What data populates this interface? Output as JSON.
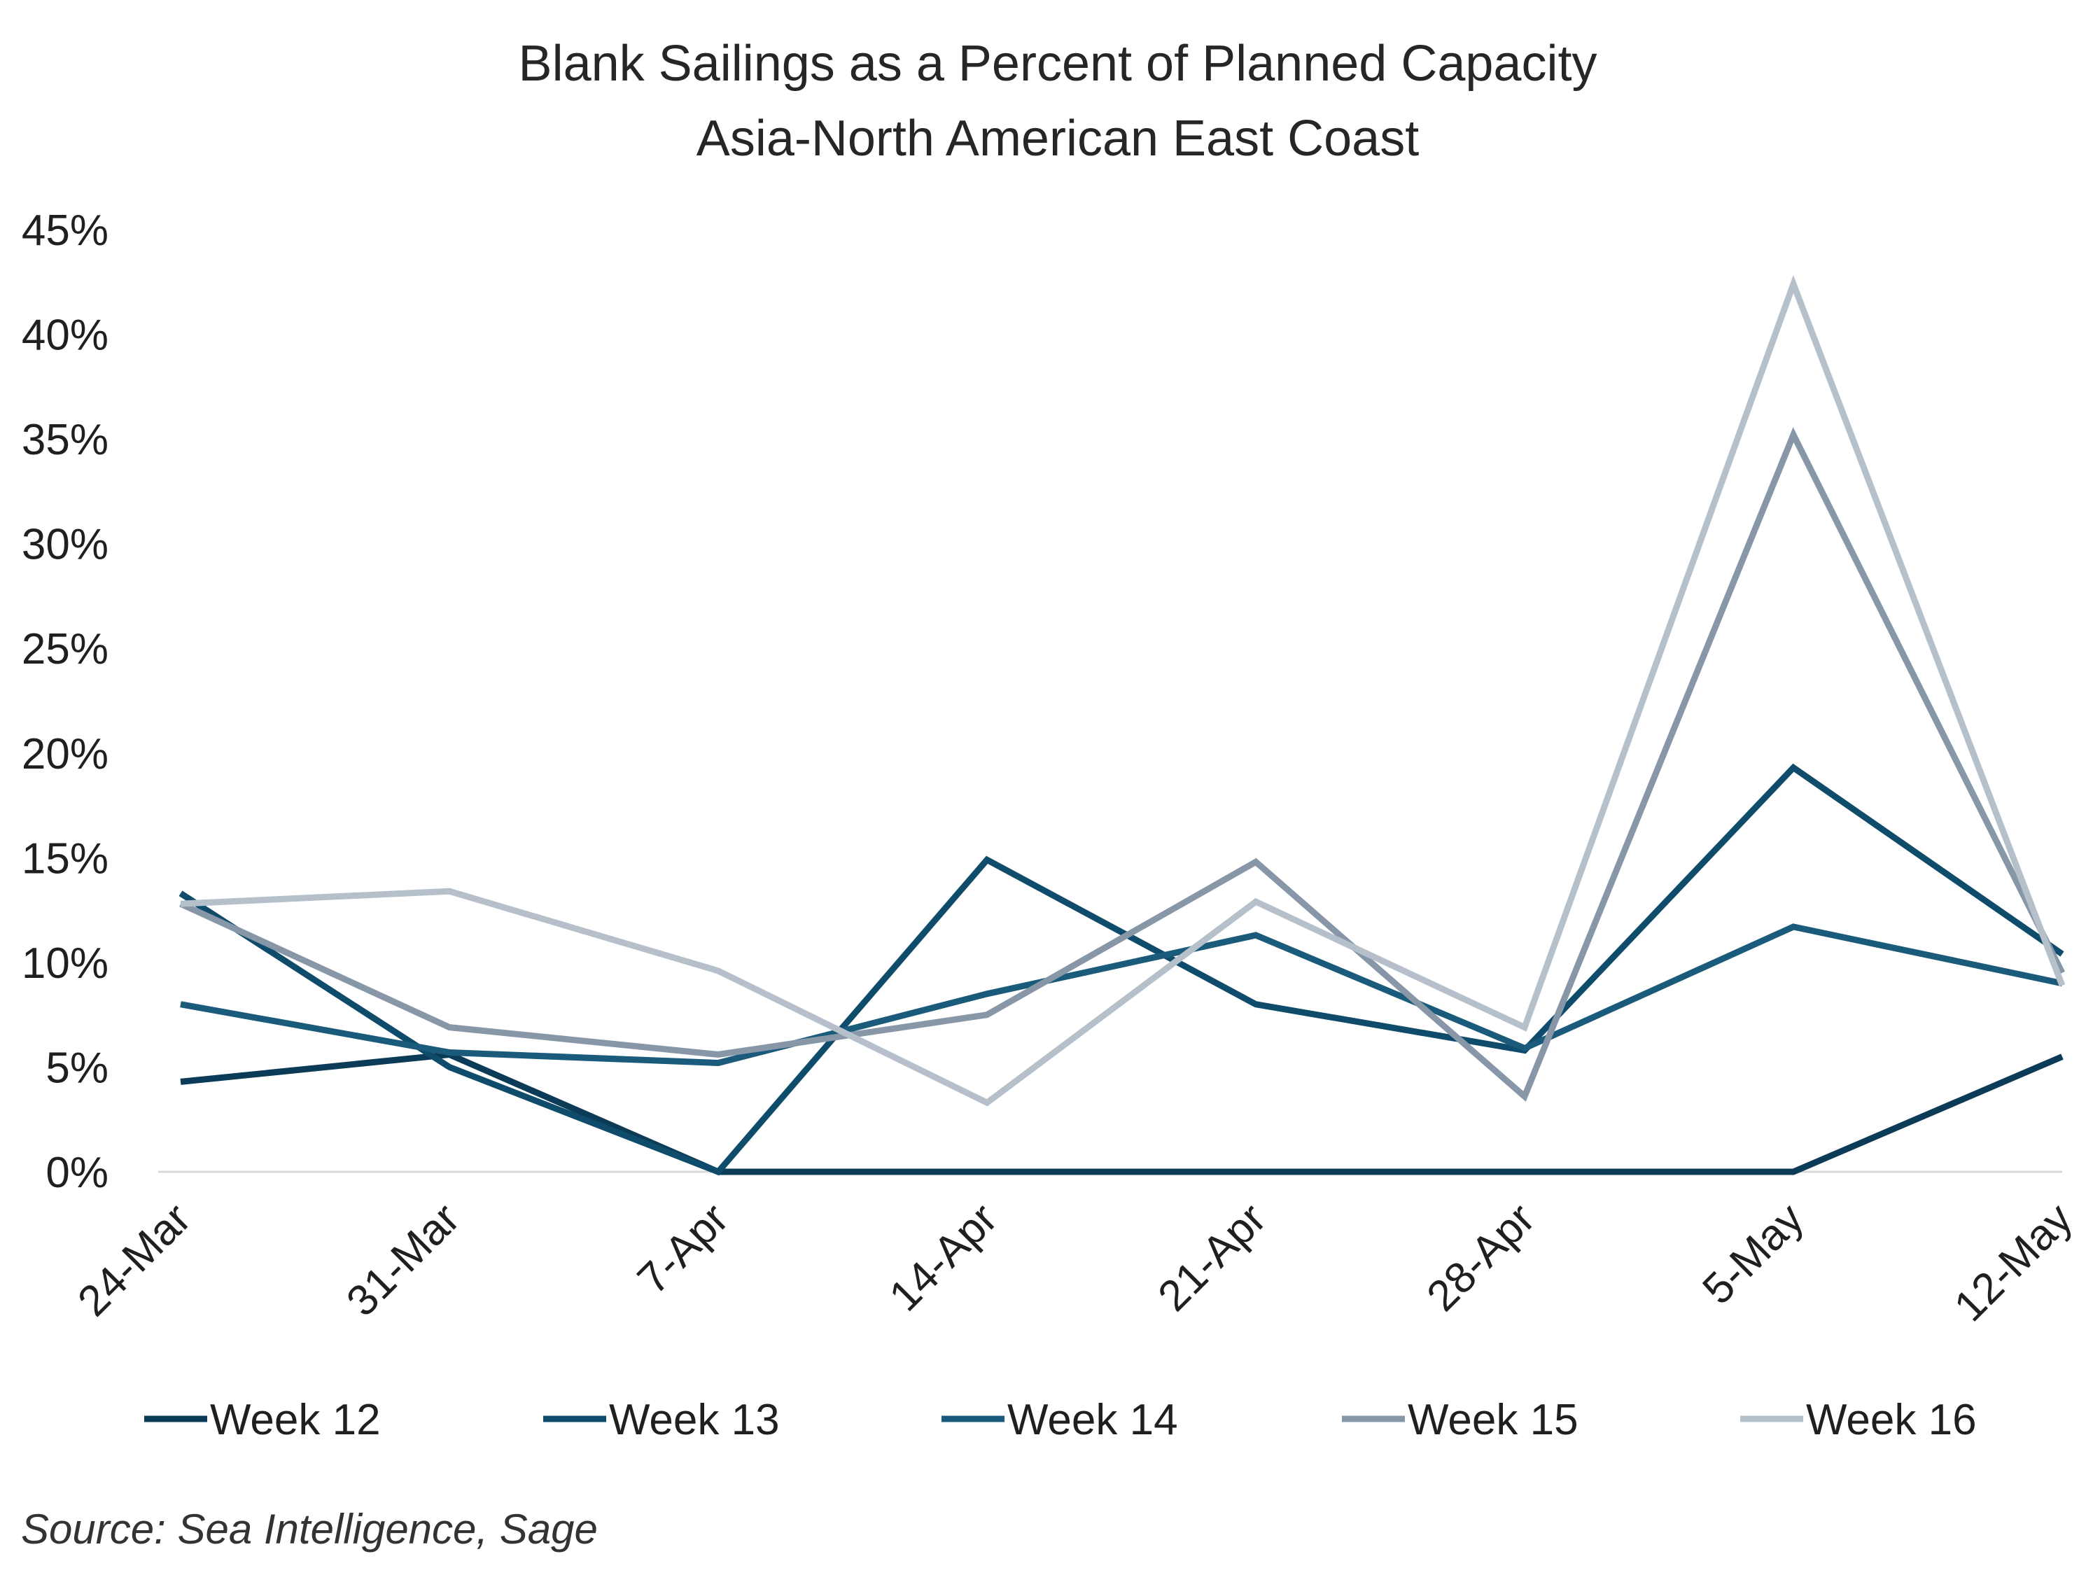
{
  "chart_data": {
    "type": "line",
    "title": "Blank Sailings as a Percent of Planned Capacity",
    "subtitle": "Asia-North American East Coast",
    "xlabel": "",
    "ylabel": "",
    "categories": [
      "24-Mar",
      "31-Mar",
      "7-Apr",
      "14-Apr",
      "21-Apr",
      "28-Apr",
      "5-May",
      "12-May"
    ],
    "y_ticks": [
      "0%",
      "5%",
      "10%",
      "15%",
      "20%",
      "25%",
      "30%",
      "35%",
      "40%",
      "45%"
    ],
    "ylim": [
      0,
      45
    ],
    "grid": false,
    "legend_position": "bottom",
    "series": [
      {
        "name": "Week 12",
        "color": "#0b3b57",
        "values": [
          4.3,
          5.6,
          0,
          0,
          0,
          0,
          0,
          5.5
        ]
      },
      {
        "name": "Week 13",
        "color": "#0f4c6b",
        "values": [
          13.3,
          5.0,
          0,
          14.9,
          8.0,
          5.8,
          19.3,
          10.4
        ]
      },
      {
        "name": "Week 14",
        "color": "#1a5a7a",
        "values": [
          8.0,
          5.7,
          5.2,
          8.5,
          11.3,
          5.9,
          11.7,
          9.0
        ]
      },
      {
        "name": "Week 15",
        "color": "#8797a8",
        "values": [
          12.8,
          6.9,
          5.6,
          7.5,
          14.8,
          3.6,
          35.2,
          9.5
        ]
      },
      {
        "name": "Week 16",
        "color": "#b5c0ca",
        "values": [
          12.8,
          13.4,
          9.6,
          3.3,
          12.9,
          6.9,
          42.4,
          8.9
        ]
      }
    ],
    "source": "Source: Sea Intelligence, Sage"
  }
}
